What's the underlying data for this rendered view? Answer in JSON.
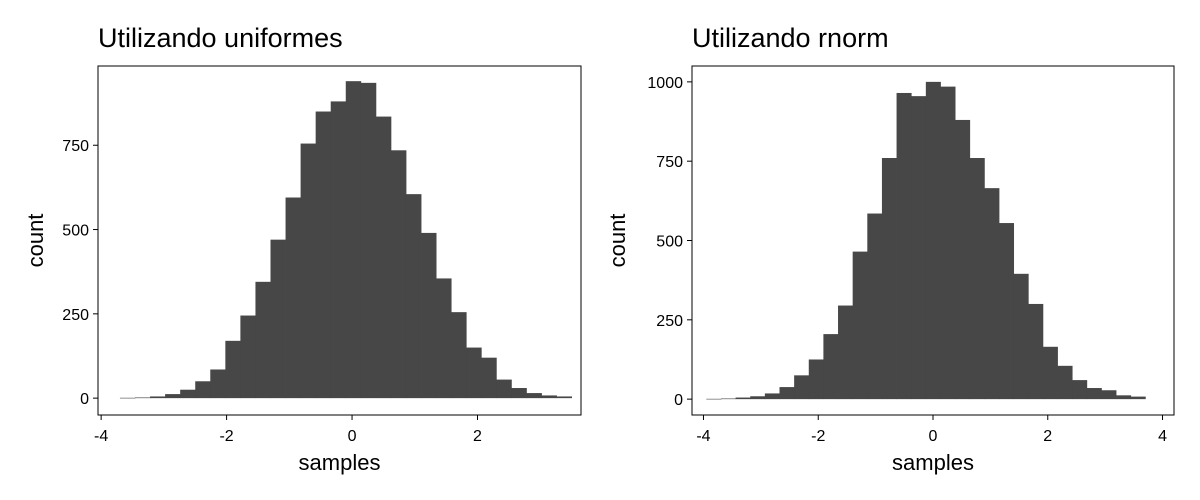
{
  "colors": {
    "bar": "#474747",
    "frame": "#000000",
    "background": "#ffffff"
  },
  "chart_data": [
    {
      "type": "bar",
      "title": "Utilizando uniformes",
      "xlabel": "samples",
      "ylabel": "count",
      "xlim": [
        -4.05,
        3.65
      ],
      "ylim": [
        -50,
        985
      ],
      "xticks": [
        -4,
        -2,
        0,
        2
      ],
      "xtick_labels": [
        "-4",
        "-2",
        "0",
        "2"
      ],
      "yticks": [
        0,
        250,
        500,
        750
      ],
      "ytick_labels": [
        "0",
        "250",
        "500",
        "750"
      ],
      "grid": false,
      "bin_edges": [
        -3.7,
        -3.46,
        -3.22,
        -2.98,
        -2.74,
        -2.5,
        -2.26,
        -2.02,
        -1.78,
        -1.54,
        -1.3,
        -1.06,
        -0.82,
        -0.58,
        -0.34,
        -0.1,
        0.14,
        0.38,
        0.62,
        0.86,
        1.1,
        1.34,
        1.58,
        1.82,
        2.06,
        2.3,
        2.54,
        2.78,
        3.02,
        3.26,
        3.5
      ],
      "values": [
        1,
        2,
        5,
        12,
        25,
        50,
        85,
        170,
        245,
        345,
        470,
        595,
        755,
        850,
        880,
        940,
        935,
        835,
        735,
        605,
        490,
        355,
        255,
        150,
        120,
        55,
        30,
        15,
        8,
        5
      ]
    },
    {
      "type": "bar",
      "title": "Utilizando rnorm",
      "xlabel": "samples",
      "ylabel": "count",
      "xlim": [
        -4.2,
        4.2
      ],
      "ylim": [
        -50,
        1050
      ],
      "xticks": [
        -4,
        -2,
        0,
        2,
        4
      ],
      "xtick_labels": [
        "-4",
        "-2",
        "0",
        "2",
        "4"
      ],
      "yticks": [
        0,
        250,
        500,
        750,
        1000
      ],
      "ytick_labels": [
        "0",
        "250",
        "500",
        "750",
        "1000"
      ],
      "grid": false,
      "bin_edges": [
        -3.95,
        -3.695,
        -3.44,
        -3.185,
        -2.93,
        -2.675,
        -2.42,
        -2.165,
        -1.91,
        -1.655,
        -1.4,
        -1.145,
        -0.89,
        -0.635,
        -0.38,
        -0.125,
        0.13,
        0.385,
        0.64,
        0.895,
        1.15,
        1.405,
        1.66,
        1.915,
        2.17,
        2.425,
        2.68,
        2.935,
        3.19,
        3.445,
        3.7
      ],
      "values": [
        1,
        2,
        5,
        9,
        18,
        38,
        75,
        125,
        205,
        295,
        465,
        585,
        760,
        965,
        955,
        1000,
        985,
        880,
        760,
        665,
        555,
        395,
        300,
        165,
        105,
        60,
        35,
        28,
        12,
        8
      ]
    }
  ]
}
